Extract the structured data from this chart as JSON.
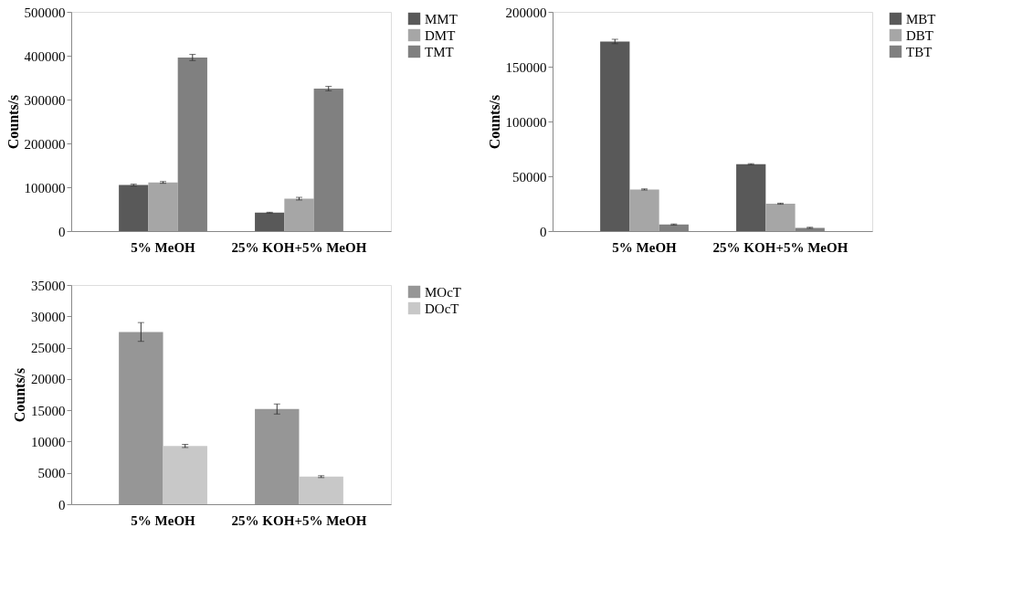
{
  "chart_data": [
    {
      "type": "bar",
      "ylabel": "Counts/s",
      "categories": [
        "5% MeOH",
        "25% KOH+5% MeOH"
      ],
      "ylim": [
        0,
        500000
      ],
      "yticks": [
        0,
        100000,
        200000,
        300000,
        400000,
        500000
      ],
      "grid": false,
      "legend": "right",
      "series": [
        {
          "name": "MMT",
          "color": "#595959",
          "values": [
            105000,
            42000
          ],
          "errors": [
            2000,
            1000
          ]
        },
        {
          "name": "DMT",
          "color": "#a6a6a6",
          "values": [
            111000,
            74000
          ],
          "errors": [
            2000,
            3000
          ]
        },
        {
          "name": "TMT",
          "color": "#808080",
          "values": [
            396000,
            325000
          ],
          "errors": [
            7000,
            5000
          ]
        }
      ]
    },
    {
      "type": "bar",
      "ylabel": "Counts/s",
      "categories": [
        "5% MeOH",
        "25% KOH+5% MeOH"
      ],
      "ylim": [
        0,
        200000
      ],
      "yticks": [
        0,
        50000,
        100000,
        150000,
        200000
      ],
      "grid": false,
      "legend": "right",
      "series": [
        {
          "name": "MBT",
          "color": "#595959",
          "values": [
            173000,
            61000
          ],
          "errors": [
            2000,
            500
          ]
        },
        {
          "name": "DBT",
          "color": "#a6a6a6",
          "values": [
            38000,
            25000
          ],
          "errors": [
            500,
            500
          ]
        },
        {
          "name": "TBT",
          "color": "#808080",
          "values": [
            6000,
            3000
          ],
          "errors": [
            500,
            500
          ]
        }
      ]
    },
    {
      "type": "bar",
      "ylabel": "Counts/s",
      "categories": [
        "5% MeOH",
        "25% KOH+5% MeOH"
      ],
      "ylim": [
        0,
        35000
      ],
      "yticks": [
        0,
        5000,
        10000,
        15000,
        20000,
        25000,
        30000,
        35000
      ],
      "grid": false,
      "legend": "right",
      "series": [
        {
          "name": "MOcT",
          "color": "#969696",
          "values": [
            27500,
            15200
          ],
          "errors": [
            1500,
            800
          ]
        },
        {
          "name": "DOcT",
          "color": "#c8c8c8",
          "values": [
            9300,
            4400
          ],
          "errors": [
            250,
            150
          ]
        }
      ]
    }
  ]
}
